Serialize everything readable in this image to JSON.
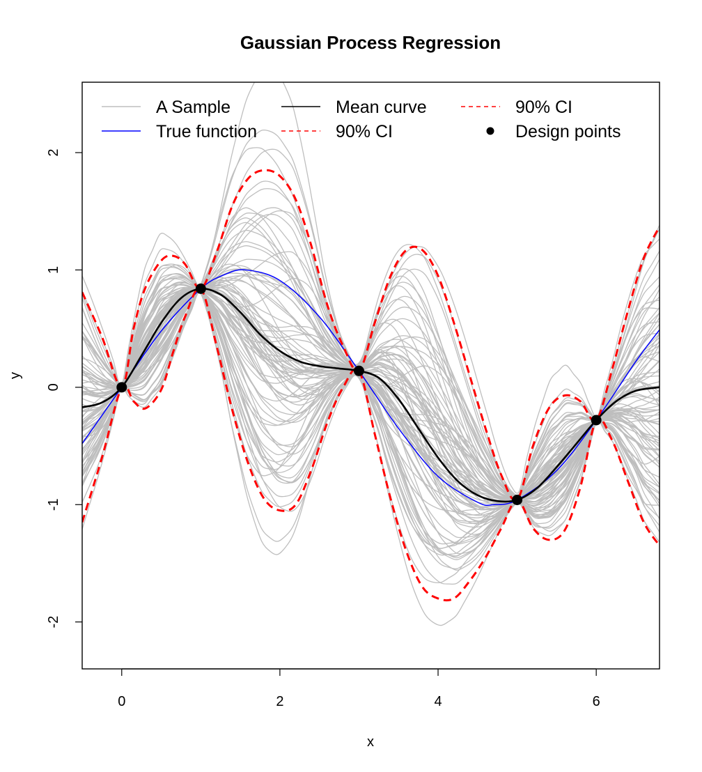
{
  "chart_data": {
    "type": "line",
    "title": "Gaussian Process Regression",
    "xlabel": "x",
    "ylabel": "y",
    "xlim": [
      -0.5,
      6.8
    ],
    "ylim": [
      -2.4,
      2.6
    ],
    "x_ticks": [
      0,
      2,
      4,
      6
    ],
    "y_ticks": [
      -2,
      -1,
      0,
      1,
      2
    ],
    "grid": false,
    "legend_position": "top",
    "legend": [
      {
        "label": "A Sample",
        "color": "#bebebe",
        "style": "solid"
      },
      {
        "label": "Mean curve",
        "color": "#000000",
        "style": "solid"
      },
      {
        "label": "90% CI",
        "color": "#ff0000",
        "style": "dashed"
      },
      {
        "label": "True function",
        "color": "#0000ff",
        "style": "solid"
      },
      {
        "label": "90% CI",
        "color": "#ff0000",
        "style": "dashed"
      },
      {
        "label": "Design points",
        "color": "#000000",
        "style": "point"
      }
    ],
    "design_points": {
      "x": [
        0,
        1,
        3,
        5,
        6
      ],
      "y": [
        0,
        0.84,
        0.14,
        -0.96,
        -0.28
      ]
    },
    "true_function": {
      "x": [
        -0.5,
        0,
        0.5,
        1,
        1.3,
        1.57,
        2,
        2.5,
        3,
        3.5,
        4,
        4.5,
        4.71,
        5,
        5.5,
        6,
        6.5,
        6.8
      ],
      "y": [
        -0.48,
        0,
        0.48,
        0.84,
        0.96,
        1.0,
        0.91,
        0.6,
        0.14,
        -0.35,
        -0.76,
        -0.98,
        -1.0,
        -0.96,
        -0.71,
        -0.28,
        0.22,
        0.49
      ]
    },
    "mean_curve": {
      "x": [
        -0.5,
        -0.25,
        0,
        0.25,
        0.5,
        0.75,
        1,
        1.25,
        1.5,
        1.75,
        2,
        2.25,
        2.5,
        2.75,
        3,
        3.25,
        3.5,
        3.75,
        4,
        4.25,
        4.5,
        4.75,
        5,
        5.25,
        5.5,
        5.75,
        6,
        6.25,
        6.5,
        6.8
      ],
      "y": [
        -0.17,
        -0.13,
        0,
        0.27,
        0.55,
        0.76,
        0.84,
        0.79,
        0.64,
        0.45,
        0.31,
        0.22,
        0.18,
        0.16,
        0.14,
        0.08,
        -0.1,
        -0.35,
        -0.6,
        -0.8,
        -0.92,
        -0.97,
        -0.96,
        -0.86,
        -0.68,
        -0.48,
        -0.28,
        -0.12,
        -0.03,
        0.0
      ]
    },
    "ci_upper": {
      "x": [
        -0.5,
        -0.25,
        0,
        0.15,
        0.3,
        0.5,
        0.65,
        0.8,
        1,
        1.2,
        1.4,
        1.6,
        1.8,
        2.0,
        2.2,
        2.4,
        2.6,
        2.8,
        3,
        3.2,
        3.4,
        3.6,
        3.8,
        4.0,
        4.2,
        4.4,
        4.6,
        4.8,
        5,
        5.2,
        5.4,
        5.6,
        5.8,
        6,
        6.2,
        6.4,
        6.6,
        6.8
      ],
      "y": [
        0.81,
        0.43,
        0,
        0.5,
        0.85,
        1.08,
        1.12,
        1.05,
        0.84,
        1.15,
        1.55,
        1.78,
        1.85,
        1.8,
        1.6,
        1.2,
        0.7,
        0.35,
        0.14,
        0.55,
        0.95,
        1.17,
        1.17,
        0.95,
        0.55,
        0.1,
        -0.35,
        -0.75,
        -0.96,
        -0.5,
        -0.18,
        -0.07,
        -0.12,
        -0.28,
        0.15,
        0.65,
        1.1,
        1.37
      ]
    },
    "ci_lower": {
      "x": [
        -0.5,
        -0.25,
        0,
        0.15,
        0.3,
        0.5,
        0.65,
        0.8,
        1,
        1.2,
        1.4,
        1.6,
        1.8,
        2.0,
        2.2,
        2.4,
        2.6,
        2.8,
        3,
        3.2,
        3.4,
        3.6,
        3.8,
        4.0,
        4.2,
        4.4,
        4.6,
        4.8,
        5,
        5.2,
        5.4,
        5.6,
        5.8,
        6,
        6.2,
        6.4,
        6.6,
        6.8
      ],
      "y": [
        -1.15,
        -0.6,
        0,
        -0.12,
        -0.18,
        -0.02,
        0.3,
        0.6,
        0.84,
        0.35,
        -0.2,
        -0.65,
        -0.95,
        -1.05,
        -1.0,
        -0.7,
        -0.3,
        0.0,
        0.14,
        -0.4,
        -0.95,
        -1.4,
        -1.7,
        -1.8,
        -1.8,
        -1.65,
        -1.45,
        -1.2,
        -0.96,
        -1.2,
        -1.3,
        -1.22,
        -0.85,
        -0.28,
        -0.45,
        -0.8,
        -1.15,
        -1.35
      ]
    }
  }
}
